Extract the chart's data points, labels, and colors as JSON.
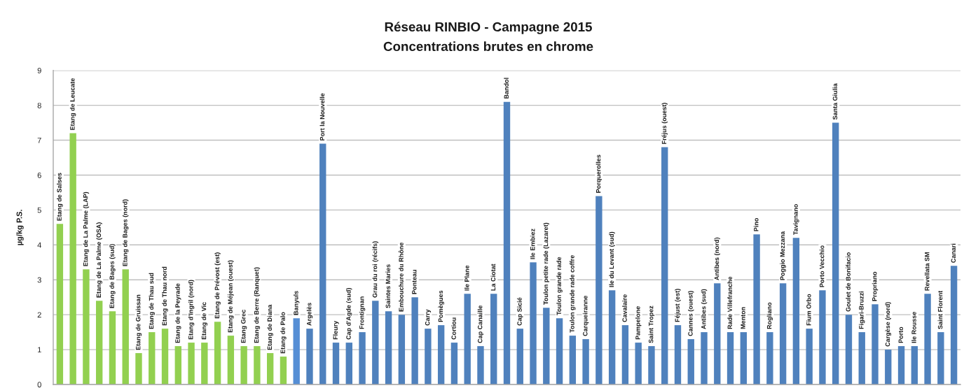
{
  "chart_data": {
    "type": "bar",
    "title": "Réseau RINBIO - Campagne 2015",
    "subtitle": "Concentrations brutes en chrome",
    "ylabel": "µg/kg P.S.",
    "categories": [
      "Etang de Salses",
      "Etang de Leucate",
      "Etang de La Palme (LAP)",
      "Etang de La Palme (OSA)",
      "Etang de Bages (sud)",
      "Etang de Bages (nord)",
      "Etang de Gruissan",
      "Etang de Thau sud",
      "Etang de Thau nord",
      "Etang de la Peyrade",
      "Etang d'Ingril (nord)",
      "Etang de Vic",
      "Etang de Prévost (est)",
      "Etang de Méjean (ouest)",
      "Etang Grec",
      "Etang de Berre (Ranquet)",
      "Etang de Diana",
      "Etang de Palo",
      "Banyuls",
      "Argelès",
      "Port la Nouvelle",
      "Fleury",
      "Cap d'Agde (sud)",
      "Frontignan",
      "Grau du roi (récifs)",
      "Saintes Maries",
      "Embouchure du Rhône",
      "Ponteau",
      "Carry",
      "Pomègues",
      "Cortiou",
      "Ile Plane",
      "Cap Canaille",
      "La Ciotat",
      "Bandol",
      "Cap Sicié",
      "Ile Embiez",
      "Toulon petite rade (Lazaret)",
      "Toulon grande rade",
      "Toulon grande rade coffre",
      "Carqueiranne",
      "Porquerolles",
      "Ile du Levant (sud)",
      "Cavalaire",
      "Pampelone",
      "Saint Tropez",
      "Fréjus (ouest)",
      "Féjust (est)",
      "Cannes (ouest)",
      "Antibes (sud)",
      "Antibes (nord)",
      "Rade Villefranche",
      "Menton",
      "Pino",
      "Rogliano",
      "Poggio Mezzana",
      "Tavignano",
      "Fium Orbo",
      "Porto Vecchio",
      "Santa Giulia",
      "Goulet de Bonifacio",
      "Figari-Bruzzi",
      "Propriano",
      "Cargèse (nord)",
      "Porto",
      "Ile Rousse",
      "Revellata SM",
      "Saint Florent",
      "Canari"
    ],
    "values": [
      4.6,
      7.2,
      3.3,
      2.4,
      2.1,
      3.3,
      0.9,
      1.5,
      1.6,
      1.1,
      1.2,
      1.2,
      1.8,
      1.4,
      1.1,
      1.1,
      0.9,
      0.8,
      1.9,
      1.6,
      6.9,
      1.2,
      1.2,
      1.5,
      2.4,
      2.1,
      2.0,
      2.5,
      1.6,
      1.7,
      1.2,
      2.6,
      1.1,
      2.6,
      8.1,
      1.6,
      3.5,
      2.2,
      1.9,
      1.4,
      1.3,
      5.4,
      2.7,
      1.7,
      1.2,
      1.1,
      6.8,
      1.7,
      1.3,
      1.5,
      2.9,
      1.5,
      1.5,
      4.3,
      1.5,
      2.9,
      4.2,
      1.6,
      2.7,
      7.5,
      2.0,
      1.5,
      2.3,
      1.0,
      1.1,
      1.1,
      2.6,
      1.5,
      3.4
    ],
    "colors": [
      "#92d050",
      "#92d050",
      "#92d050",
      "#92d050",
      "#92d050",
      "#92d050",
      "#92d050",
      "#92d050",
      "#92d050",
      "#92d050",
      "#92d050",
      "#92d050",
      "#92d050",
      "#92d050",
      "#92d050",
      "#92d050",
      "#92d050",
      "#92d050",
      "#558ed5",
      "#4f81bd",
      "#4f81bd",
      "#4f81bd",
      "#4f81bd",
      "#4f81bd",
      "#4f81bd",
      "#4f81bd",
      "#4f81bd",
      "#4f81bd",
      "#4f81bd",
      "#4f81bd",
      "#4f81bd",
      "#4f81bd",
      "#4f81bd",
      "#4f81bd",
      "#4f81bd",
      "#4f81bd",
      "#4f81bd",
      "#4f81bd",
      "#4f81bd",
      "#4f81bd",
      "#4f81bd",
      "#4f81bd",
      "#4f81bd",
      "#4f81bd",
      "#4f81bd",
      "#4f81bd",
      "#4f81bd",
      "#4f81bd",
      "#4f81bd",
      "#4f81bd",
      "#4f81bd",
      "#4f81bd",
      "#4f81bd",
      "#4f81bd",
      "#4f81bd",
      "#4f81bd",
      "#4f81bd",
      "#4f81bd",
      "#4f81bd",
      "#4f81bd",
      "#4f81bd",
      "#4f81bd",
      "#4f81bd",
      "#4f81bd",
      "#4f81bd",
      "#4f81bd",
      "#4f81bd",
      "#4f81bd",
      "#4f81bd"
    ],
    "ylim": [
      0,
      9
    ],
    "yticks": [
      0,
      1,
      2,
      3,
      4,
      5,
      6,
      7,
      8,
      9
    ],
    "grid": "y",
    "tick_labels": "y"
  }
}
